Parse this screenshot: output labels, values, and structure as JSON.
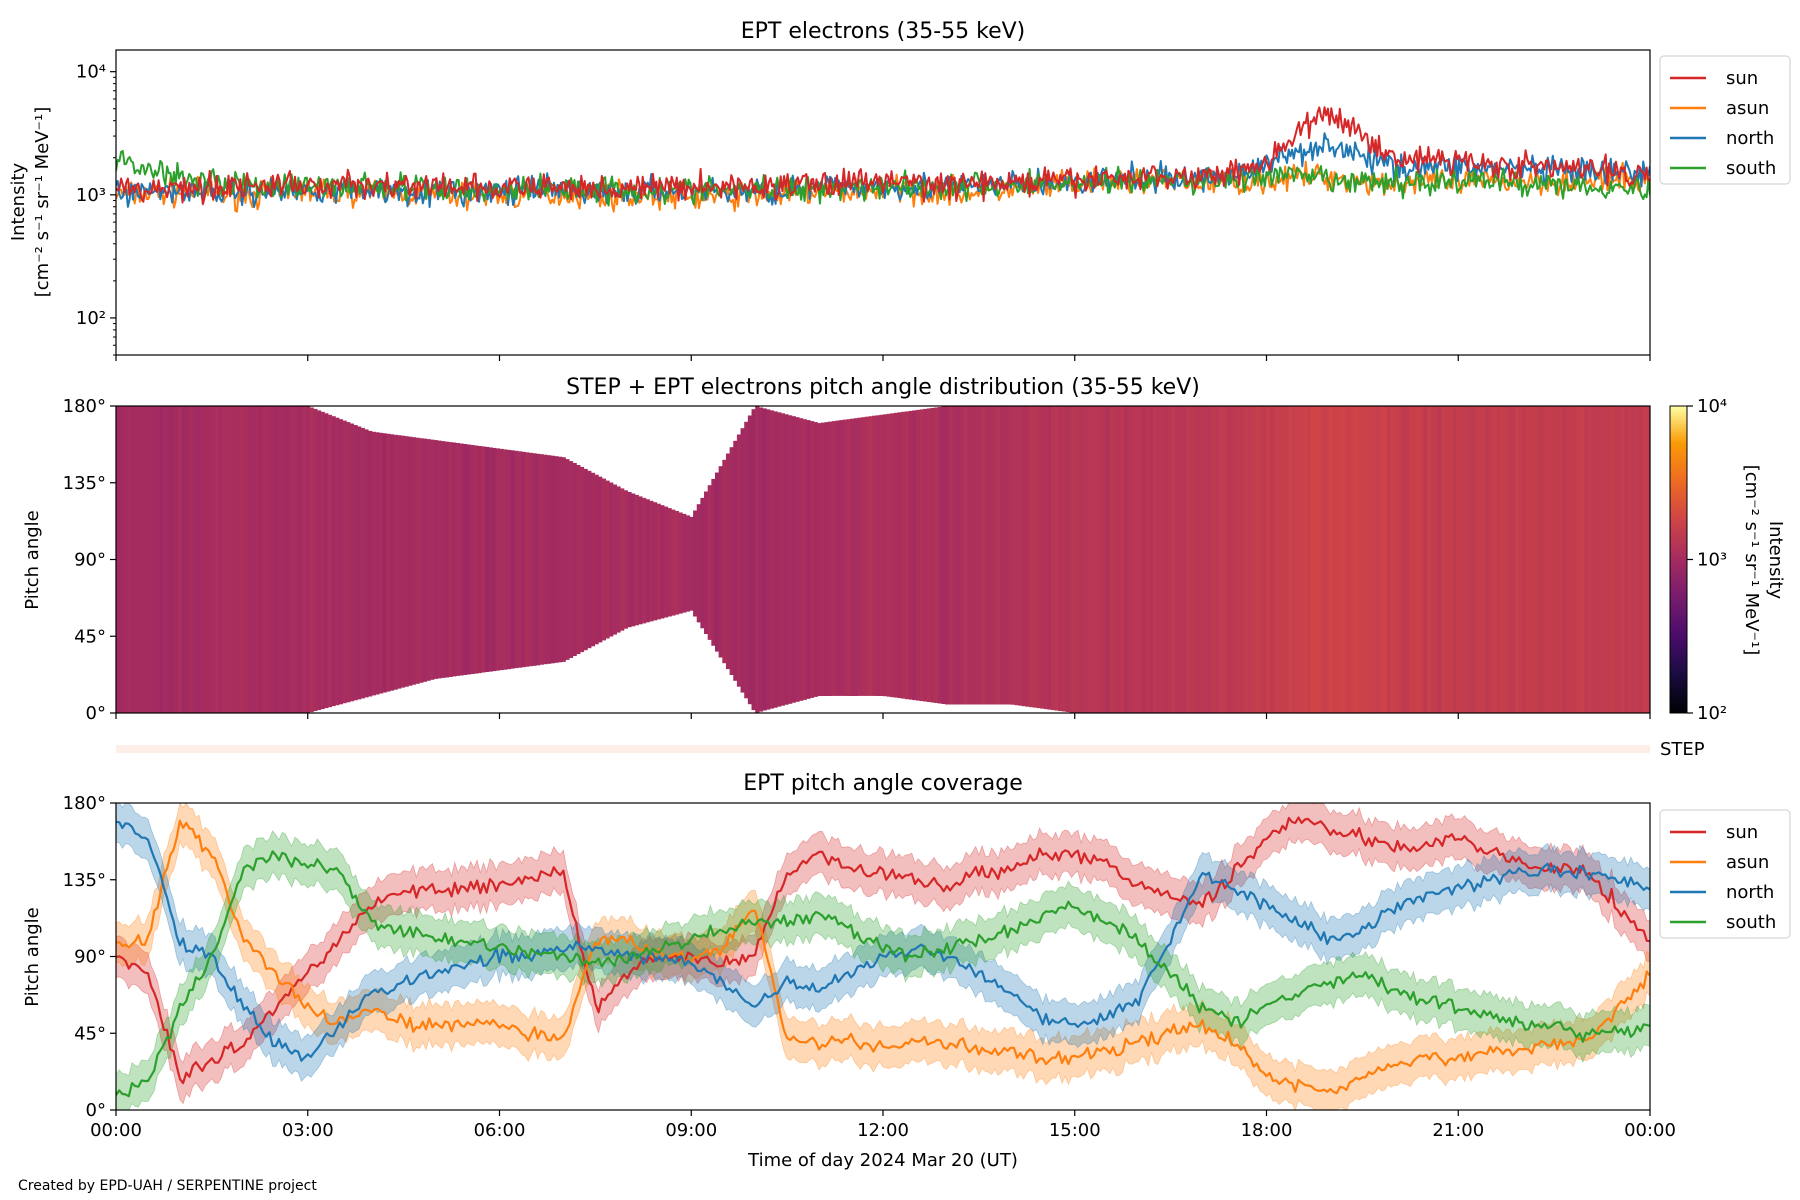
{
  "footer": {
    "credit": "Created by EPD-UAH / SERPENTINE project"
  },
  "colors": {
    "sun": "#d62728",
    "asun": "#ff7f0e",
    "north": "#1f77b4",
    "south": "#2ca02c"
  },
  "chart_data": [
    {
      "type": "line",
      "title": "EPT electrons (35-55 keV)",
      "ylabel": "Intensity",
      "yunit": "[cm⁻² s⁻¹ sr⁻¹ MeV⁻¹]",
      "yscale": "log",
      "ylim": [
        50,
        15000
      ],
      "yticks": [
        {
          "value": 100,
          "label": "10²"
        },
        {
          "value": 1000,
          "label": "10³"
        },
        {
          "value": 10000,
          "label": "10⁴"
        }
      ],
      "xlim": [
        0,
        24
      ],
      "legend": "right",
      "x": [
        0,
        1,
        2,
        3,
        4,
        5,
        6,
        7,
        8,
        9,
        10,
        11,
        12,
        13,
        14,
        15,
        16,
        17,
        17.5,
        18,
        18.5,
        19,
        19.5,
        20,
        21,
        22,
        23,
        24
      ],
      "series": [
        {
          "name": "sun",
          "color": "#d62728",
          "values": [
            1100,
            1150,
            1200,
            1180,
            1220,
            1150,
            1120,
            1150,
            1120,
            1180,
            1150,
            1250,
            1300,
            1200,
            1250,
            1300,
            1400,
            1400,
            1600,
            1800,
            3200,
            4500,
            3000,
            2000,
            1900,
            1700,
            1600,
            1500
          ]
        },
        {
          "name": "asun",
          "color": "#ff7f0e",
          "values": [
            1000,
            1050,
            1000,
            1080,
            1050,
            1000,
            980,
            1020,
            1000,
            950,
            1000,
            1050,
            1100,
            1050,
            1100,
            1200,
            1300,
            1250,
            1300,
            1300,
            1400,
            1400,
            1300,
            1250,
            1250,
            1300,
            1300,
            1300
          ]
        },
        {
          "name": "north",
          "color": "#1f77b4",
          "values": [
            1050,
            1100,
            1050,
            1100,
            1100,
            1050,
            1050,
            1100,
            1050,
            1100,
            1050,
            1150,
            1200,
            1150,
            1200,
            1250,
            1350,
            1350,
            1500,
            1700,
            2300,
            2600,
            2000,
            1700,
            1700,
            1600,
            1500,
            1500
          ]
        },
        {
          "name": "south",
          "color": "#2ca02c",
          "values": [
            1900,
            1400,
            1200,
            1150,
            1200,
            1100,
            1100,
            1150,
            1100,
            1100,
            1100,
            1150,
            1200,
            1150,
            1200,
            1250,
            1300,
            1300,
            1350,
            1400,
            1400,
            1300,
            1250,
            1250,
            1300,
            1250,
            1200,
            1100
          ]
        }
      ]
    },
    {
      "type": "heatmap",
      "title": "STEP + EPT electrons pitch angle distribution (35-55 keV)",
      "ylabel": "Pitch angle",
      "yticks": [
        "0°",
        "45°",
        "90°",
        "135°",
        "180°"
      ],
      "ylim": [
        0,
        180
      ],
      "xlim": [
        0,
        24
      ],
      "colorbar": {
        "label": "Intensity",
        "unit": "[cm⁻² s⁻¹ sr⁻¹ MeV⁻¹]",
        "scale": "log",
        "range": [
          100,
          10000
        ],
        "ticks": [
          {
            "value": 100,
            "label": "10²"
          },
          {
            "value": 1000,
            "label": "10³"
          },
          {
            "value": 10000,
            "label": "10⁴"
          }
        ]
      },
      "x": [
        0,
        1,
        2,
        3,
        4,
        5,
        6,
        7,
        8,
        9,
        10,
        11,
        12,
        13,
        14,
        15,
        16,
        17,
        18,
        19,
        20,
        21,
        22,
        23,
        24
      ],
      "coverage_min": [
        0,
        0,
        0,
        0,
        10,
        20,
        25,
        30,
        50,
        60,
        0,
        10,
        10,
        5,
        5,
        0,
        0,
        0,
        0,
        0,
        0,
        0,
        0,
        0,
        0
      ],
      "coverage_max": [
        180,
        180,
        180,
        180,
        165,
        160,
        155,
        150,
        130,
        115,
        180,
        170,
        175,
        180,
        180,
        180,
        180,
        180,
        180,
        180,
        180,
        180,
        180,
        180,
        180
      ],
      "intensity": [
        1000,
        1000,
        1050,
        1050,
        1000,
        1000,
        1000,
        1000,
        1050,
        1000,
        1000,
        1050,
        1100,
        1100,
        1150,
        1250,
        1300,
        1350,
        1500,
        1800,
        1600,
        1500,
        1500,
        1500,
        1500
      ]
    },
    {
      "type": "strip",
      "label": "STEP",
      "xlim": [
        0,
        24
      ]
    },
    {
      "type": "line",
      "title": "EPT pitch angle coverage",
      "ylabel": "Pitch angle",
      "yticks": [
        "0°",
        "45°",
        "90°",
        "135°",
        "180°"
      ],
      "ylim": [
        0,
        180
      ],
      "xlim": [
        0,
        24
      ],
      "xlabel": "Time of day 2024 Mar 20 (UT)",
      "xticks": [
        "00:00",
        "03:00",
        "06:00",
        "09:00",
        "12:00",
        "15:00",
        "18:00",
        "21:00",
        "00:00"
      ],
      "legend": "right",
      "band_halfwidth_deg": 12,
      "x": [
        0,
        0.5,
        1,
        1.5,
        2,
        2.5,
        3,
        3.5,
        4,
        4.5,
        5,
        5.5,
        6,
        6.5,
        7,
        7.5,
        8,
        8.5,
        9,
        9.5,
        10,
        10.5,
        11,
        11.5,
        12,
        12.5,
        13,
        13.5,
        14,
        14.5,
        15,
        15.5,
        16,
        16.5,
        17,
        17.5,
        18,
        18.5,
        19,
        19.5,
        20,
        20.5,
        21,
        21.5,
        22,
        22.5,
        23,
        23.5,
        24
      ],
      "series": [
        {
          "name": "sun",
          "color": "#d62728",
          "values": [
            90,
            80,
            20,
            30,
            40,
            60,
            80,
            100,
            120,
            130,
            128,
            130,
            132,
            135,
            140,
            60,
            80,
            90,
            90,
            85,
            90,
            140,
            150,
            140,
            140,
            135,
            130,
            140,
            140,
            150,
            150,
            145,
            130,
            125,
            120,
            140,
            160,
            170,
            165,
            160,
            155,
            155,
            160,
            150,
            145,
            140,
            140,
            120,
            100
          ]
        },
        {
          "name": "asun",
          "color": "#ff7f0e",
          "values": [
            95,
            100,
            170,
            150,
            100,
            80,
            60,
            50,
            60,
            50,
            50,
            50,
            50,
            45,
            40,
            100,
            100,
            90,
            90,
            95,
            120,
            40,
            40,
            40,
            35,
            40,
            40,
            35,
            35,
            30,
            30,
            35,
            40,
            45,
            50,
            40,
            20,
            15,
            10,
            20,
            25,
            30,
            30,
            35,
            35,
            40,
            40,
            60,
            80
          ]
        },
        {
          "name": "north",
          "color": "#1f77b4",
          "values": [
            170,
            160,
            100,
            90,
            60,
            40,
            30,
            50,
            70,
            75,
            80,
            85,
            90,
            90,
            95,
            95,
            90,
            90,
            85,
            75,
            60,
            75,
            70,
            80,
            90,
            95,
            90,
            80,
            70,
            55,
            50,
            55,
            65,
            100,
            140,
            130,
            120,
            110,
            100,
            105,
            120,
            125,
            130,
            135,
            140,
            140,
            140,
            135,
            130
          ]
        },
        {
          "name": "south",
          "color": "#2ca02c",
          "values": [
            10,
            15,
            60,
            90,
            140,
            150,
            145,
            140,
            110,
            105,
            100,
            98,
            95,
            92,
            90,
            85,
            90,
            95,
            100,
            105,
            110,
            110,
            115,
            105,
            95,
            90,
            95,
            100,
            105,
            115,
            120,
            110,
            100,
            80,
            60,
            50,
            60,
            70,
            75,
            80,
            70,
            65,
            60,
            55,
            50,
            50,
            45,
            45,
            50
          ]
        }
      ]
    }
  ]
}
